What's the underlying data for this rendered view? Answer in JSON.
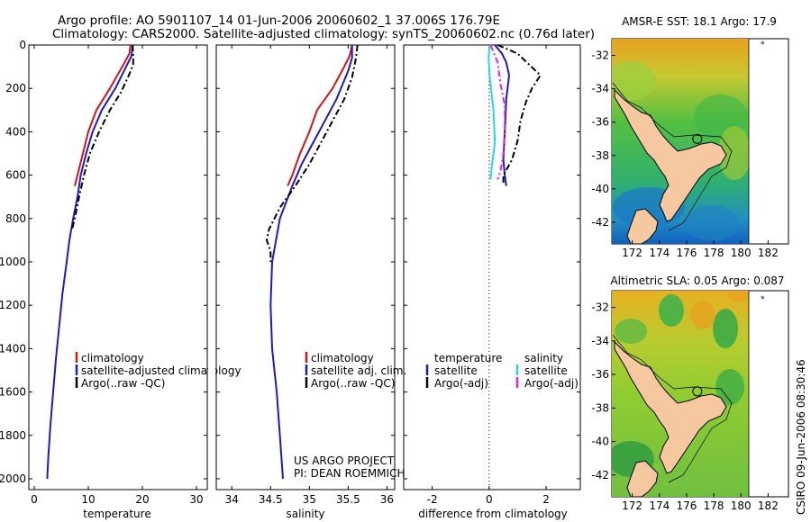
{
  "title": {
    "line1": "Argo profile: AO 5901107_14 01-Jun-2006 20060602_1 37.006S 176.79E",
    "line2": "Climatology: CARS2000. Satellite-adjusted climatology: synTS_20060602.nc (0.76d later)"
  },
  "credit": {
    "line1": "US ARGO PROJECT",
    "line2": "PI: DEAN ROEMMICH"
  },
  "stamp": "CSIRO 09-Jun-2006 08:30:46",
  "colors": {
    "climatology": "#dd1111",
    "satellite": "#1a1acc",
    "argo": "#000000",
    "salinity_satellite": "#22d8e8",
    "salinity_argo": "#ee22dd"
  },
  "chart_data": [
    {
      "type": "line",
      "name": "temperature-profile",
      "xlabel": "temperature",
      "ylabel": "",
      "xlim": [
        -1,
        32
      ],
      "ylim": [
        2050,
        0
      ],
      "xticks": [
        "0",
        "10",
        "20",
        "30"
      ],
      "xtick_values": [
        0,
        10,
        20,
        30
      ],
      "yticks": [
        "0",
        "200",
        "400",
        "600",
        "800",
        "1000",
        "1200",
        "1400",
        "1600",
        "1800",
        "2000"
      ],
      "ytick_values": [
        0,
        200,
        400,
        600,
        800,
        1000,
        1200,
        1400,
        1600,
        1800,
        2000
      ],
      "legend": [
        "climatology",
        "satellite-adjusted climatology",
        "Argo(..raw -QC)"
      ],
      "series": [
        {
          "name": "climatology",
          "style": "solid",
          "color_key": "climatology",
          "points": [
            [
              17.8,
              0
            ],
            [
              17.6,
              40
            ],
            [
              16.5,
              90
            ],
            [
              14,
              200
            ],
            [
              11.5,
              300
            ],
            [
              10,
              400
            ],
            [
              9,
              500
            ],
            [
              8,
              600
            ],
            [
              7.5,
              650
            ]
          ]
        },
        {
          "name": "satellite",
          "style": "solid",
          "color_key": "satellite",
          "points": [
            [
              18.2,
              0
            ],
            [
              18,
              50
            ],
            [
              17,
              100
            ],
            [
              15,
              200
            ],
            [
              12.5,
              300
            ],
            [
              10.8,
              400
            ],
            [
              9.6,
              500
            ],
            [
              8.6,
              600
            ],
            [
              8,
              700
            ],
            [
              7.2,
              800
            ],
            [
              6.5,
              900
            ],
            [
              6,
              1000
            ],
            [
              5.2,
              1150
            ],
            [
              4.6,
              1300
            ],
            [
              4,
              1450
            ],
            [
              3.5,
              1600
            ],
            [
              3,
              1750
            ],
            [
              2.6,
              1900
            ],
            [
              2.4,
              2000
            ]
          ]
        },
        {
          "name": "argo",
          "style": "dashdot",
          "color_key": "argo",
          "points": [
            [
              18.2,
              0
            ],
            [
              18.3,
              50
            ],
            [
              18.3,
              90
            ],
            [
              17.5,
              140
            ],
            [
              16,
              220
            ],
            [
              14,
              300
            ],
            [
              12,
              400
            ],
            [
              10.3,
              500
            ],
            [
              9.2,
              600
            ],
            [
              8.3,
              700
            ],
            [
              7.5,
              800
            ],
            [
              7,
              850
            ]
          ]
        }
      ]
    },
    {
      "type": "line",
      "name": "salinity-profile",
      "xlabel": "salinity",
      "ylabel": "",
      "xlim": [
        33.8,
        36.1
      ],
      "ylim": [
        2050,
        0
      ],
      "xticks": [
        "34",
        "34.5",
        "35",
        "35.5",
        "36"
      ],
      "xtick_values": [
        34,
        34.5,
        35,
        35.5,
        36
      ],
      "legend": [
        "climatology",
        "satellite adj. clim.",
        "Argo(..raw -QC)"
      ],
      "series": [
        {
          "name": "climatology",
          "style": "solid",
          "color_key": "climatology",
          "points": [
            [
              35.55,
              0
            ],
            [
              35.52,
              50
            ],
            [
              35.45,
              100
            ],
            [
              35.3,
              200
            ],
            [
              35.1,
              300
            ],
            [
              35,
              400
            ],
            [
              34.88,
              500
            ],
            [
              34.78,
              600
            ],
            [
              34.72,
              650
            ]
          ]
        },
        {
          "name": "satellite",
          "style": "solid",
          "color_key": "satellite",
          "points": [
            [
              35.55,
              0
            ],
            [
              35.55,
              60
            ],
            [
              35.5,
              120
            ],
            [
              35.35,
              250
            ],
            [
              35.2,
              350
            ],
            [
              35.05,
              450
            ],
            [
              34.9,
              550
            ],
            [
              34.78,
              650
            ],
            [
              34.62,
              800
            ],
            [
              34.52,
              1000
            ],
            [
              34.5,
              1200
            ],
            [
              34.52,
              1400
            ],
            [
              34.58,
              1600
            ],
            [
              34.62,
              1800
            ],
            [
              34.66,
              2000
            ]
          ]
        },
        {
          "name": "argo",
          "style": "dashdot",
          "color_key": "argo",
          "points": [
            [
              35.62,
              0
            ],
            [
              35.6,
              60
            ],
            [
              35.55,
              150
            ],
            [
              35.45,
              250
            ],
            [
              35.3,
              350
            ],
            [
              35.15,
              450
            ],
            [
              35,
              550
            ],
            [
              34.82,
              650
            ],
            [
              34.62,
              750
            ],
            [
              34.48,
              850
            ],
            [
              34.45,
              900
            ],
            [
              34.5,
              950
            ],
            [
              34.5,
              1000
            ]
          ]
        }
      ]
    },
    {
      "type": "line",
      "name": "difference-profile",
      "xlabel": "difference from climatology",
      "ylabel": "",
      "xlim": [
        -3,
        3.2
      ],
      "ylim": [
        2050,
        0
      ],
      "xticks": [
        "-2",
        "0",
        "2"
      ],
      "xtick_values": [
        -2,
        0,
        2
      ],
      "legend_headers": [
        "temperature",
        "salinity"
      ],
      "legend": [
        "satellite",
        "Argo(-adj)",
        "satellite",
        "Argo(-adj)"
      ],
      "series": [
        {
          "name": "temperature satellite",
          "style": "solid",
          "color_key": "satellite",
          "points": [
            [
              0.2,
              0
            ],
            [
              0.45,
              40
            ],
            [
              0.6,
              80
            ],
            [
              0.7,
              140
            ],
            [
              0.6,
              250
            ],
            [
              0.55,
              400
            ],
            [
              0.5,
              530
            ],
            [
              0.55,
              600
            ],
            [
              0.6,
              650
            ]
          ]
        },
        {
          "name": "temperature Argo(-adj)",
          "style": "dashdot",
          "color_key": "argo",
          "points": [
            [
              0.3,
              0
            ],
            [
              1,
              40
            ],
            [
              1.4,
              90
            ],
            [
              1.8,
              140
            ],
            [
              1.5,
              200
            ],
            [
              1.3,
              260
            ],
            [
              1.1,
              350
            ],
            [
              1,
              440
            ],
            [
              0.8,
              530
            ],
            [
              0.5,
              600
            ],
            [
              0.5,
              640
            ]
          ]
        },
        {
          "name": "salinity satellite",
          "style": "solid",
          "color_key": "salinity_satellite",
          "points": [
            [
              0.02,
              0
            ],
            [
              -0.02,
              60
            ],
            [
              0.02,
              150
            ],
            [
              0.15,
              300
            ],
            [
              0.2,
              450
            ],
            [
              0.1,
              550
            ],
            [
              0.05,
              620
            ]
          ]
        },
        {
          "name": "salinity Argo(-adj)",
          "style": "dashdot",
          "color_key": "salinity_argo",
          "points": [
            [
              0.05,
              0
            ],
            [
              0.3,
              80
            ],
            [
              0.4,
              180
            ],
            [
              0.55,
              280
            ],
            [
              0.55,
              400
            ],
            [
              0.5,
              500
            ],
            [
              0.4,
              580
            ],
            [
              0.3,
              620
            ]
          ]
        }
      ]
    },
    {
      "type": "heatmap",
      "name": "sst-map",
      "title": "AMSR-E SST: 18.1 Argo: 17.9",
      "xlim": [
        170.5,
        183.5
      ],
      "ylim": [
        -43.3,
        -31
      ],
      "xticks": [
        "172",
        "174",
        "176",
        "178",
        "180",
        "182"
      ],
      "xtick_values": [
        172,
        174,
        176,
        178,
        180,
        182
      ],
      "yticks": [
        "-32",
        "-34",
        "-36",
        "-38",
        "-40",
        "-42"
      ],
      "ytick_values": [
        -32,
        -34,
        -36,
        -38,
        -40,
        -42
      ],
      "profile_marker": {
        "lon": 176.79,
        "lat": -37.006
      }
    },
    {
      "type": "heatmap",
      "name": "sla-map",
      "title": "Altimetric SLA: 0.05 Argo: 0.087",
      "xlim": [
        170.5,
        183.5
      ],
      "ylim": [
        -43.3,
        -31
      ],
      "xticks": [
        "172",
        "174",
        "176",
        "178",
        "180",
        "182"
      ],
      "xtick_values": [
        172,
        174,
        176,
        178,
        180,
        182
      ],
      "yticks": [
        "-32",
        "-34",
        "-36",
        "-38",
        "-40",
        "-42"
      ],
      "ytick_values": [
        -32,
        -34,
        -36,
        -38,
        -40,
        -42
      ],
      "profile_marker": {
        "lon": 176.79,
        "lat": -37.006
      }
    }
  ]
}
